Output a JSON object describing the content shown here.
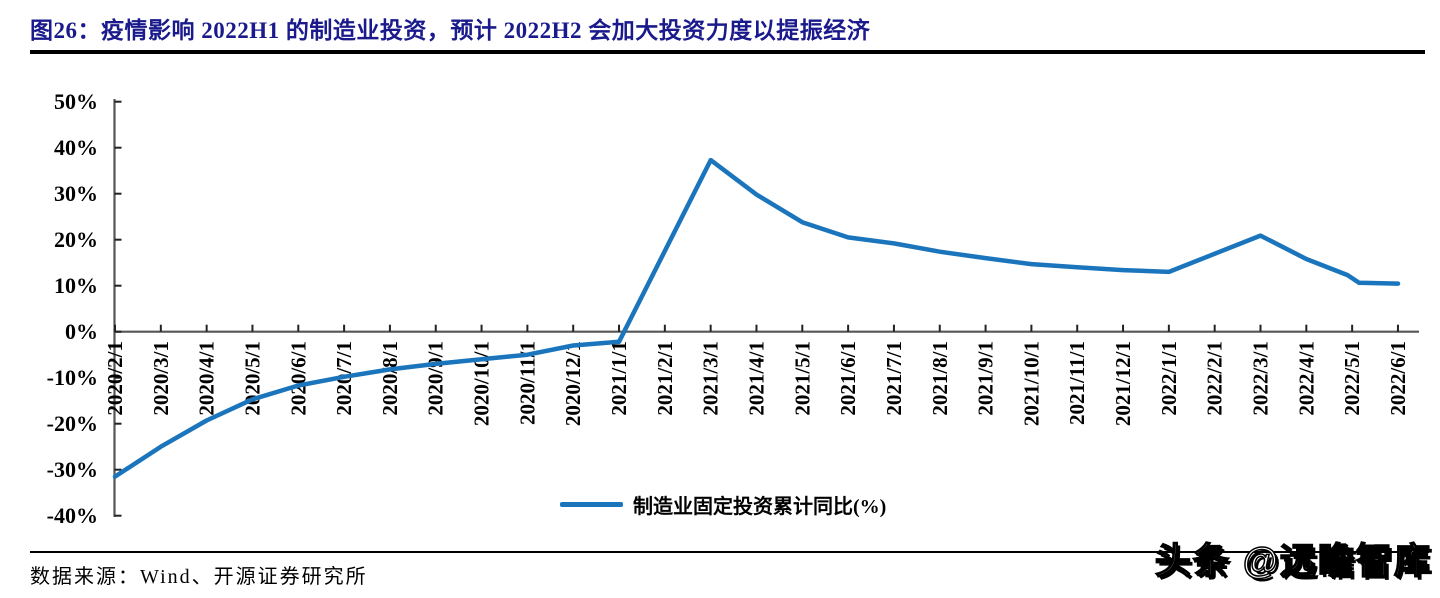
{
  "title": "图26：疫情影响 2022H1 的制造业投资，预计 2022H2 会加大投资力度以提振经济",
  "source": "数据来源：Wind、开源证券研究所",
  "watermark": "头条 @远瞻智库",
  "colors": {
    "title_text": "#1a1a8c",
    "series_line": "#1b75bc",
    "axis_line": "#555555",
    "tick_mark": "#222222",
    "label_text": "#000000",
    "rule_black": "#000000"
  },
  "chart_data": {
    "type": "line",
    "title": "",
    "xlabel": "",
    "ylabel": "",
    "ylim": [
      -40,
      50
    ],
    "grid": false,
    "legend_position": "bottom-center",
    "x_label_rotation": 90,
    "y_ticks": [
      "50%",
      "40%",
      "30%",
      "20%",
      "10%",
      "0%",
      "-10%",
      "-20%",
      "-30%",
      "-40%"
    ],
    "categories": [
      "2020/2/1",
      "2020/3/1",
      "2020/4/1",
      "2020/5/1",
      "2020/6/1",
      "2020/7/1",
      "2020/8/1",
      "2020/9/1",
      "2020/10/1",
      "2020/11/1",
      "2020/12/1",
      "2021/1/1",
      "2021/2/1",
      "2021/3/1",
      "2021/4/1",
      "2021/5/1",
      "2021/6/1",
      "2021/7/1",
      "2021/8/1",
      "2021/9/1",
      "2021/10/1",
      "2021/11/1",
      "2021/12/1",
      "2022/1/1",
      "2022/2/1",
      "2022/3/1",
      "2022/4/1",
      "2022/5/1",
      "2022/6/1"
    ],
    "series": [
      {
        "name": "制造业固定投资累计同比(%)",
        "values": [
          -31.5,
          -25.0,
          -19.3,
          -14.7,
          -11.7,
          -9.8,
          -8.2,
          -7.0,
          -6.0,
          -5.0,
          -3.0,
          -2.2,
          null,
          37.3,
          29.8,
          23.8,
          20.5,
          19.2,
          17.4,
          16.0,
          14.7,
          14.0,
          13.4,
          13.0,
          null,
          20.9,
          15.8,
          10.6,
          10.4
        ],
        "plot_points": [
          [
            0,
            -31.5
          ],
          [
            1,
            -25.0
          ],
          [
            2,
            -19.3
          ],
          [
            3,
            -14.7
          ],
          [
            4,
            -11.7
          ],
          [
            5,
            -9.8
          ],
          [
            6,
            -8.2
          ],
          [
            7,
            -7.0
          ],
          [
            8,
            -6.0
          ],
          [
            9,
            -5.0
          ],
          [
            10,
            -3.0
          ],
          [
            11,
            -2.2
          ],
          [
            13,
            37.3
          ],
          [
            14,
            29.8
          ],
          [
            15,
            23.8
          ],
          [
            16,
            20.5
          ],
          [
            17,
            19.2
          ],
          [
            18,
            17.4
          ],
          [
            19,
            16.0
          ],
          [
            20,
            14.7
          ],
          [
            21,
            14.0
          ],
          [
            22,
            13.4
          ],
          [
            23,
            13.0
          ],
          [
            25,
            20.9
          ],
          [
            26,
            15.8
          ],
          [
            26.9,
            12.3
          ],
          [
            27.15,
            10.65
          ],
          [
            28,
            10.45
          ]
        ]
      }
    ]
  }
}
